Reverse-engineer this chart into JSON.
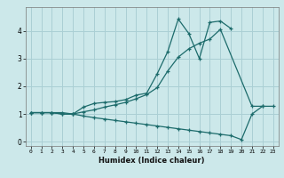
{
  "xlabel": "Humidex (Indice chaleur)",
  "bg_color": "#cce8ea",
  "grid_color": "#aacfd4",
  "line_color": "#1c6b6b",
  "xlim": [
    -0.5,
    23.5
  ],
  "ylim": [
    -0.15,
    4.85
  ],
  "xticks": [
    0,
    1,
    2,
    3,
    4,
    5,
    6,
    7,
    8,
    9,
    10,
    11,
    12,
    13,
    14,
    15,
    16,
    17,
    18,
    19,
    20,
    21,
    22,
    23
  ],
  "yticks": [
    0,
    1,
    2,
    3,
    4
  ],
  "line1_x": [
    0,
    1,
    2,
    3,
    4,
    5,
    6,
    7,
    8,
    9,
    10,
    11,
    12,
    13,
    14,
    15,
    16,
    17,
    18,
    19
  ],
  "line1_y": [
    1.05,
    1.05,
    1.05,
    1.05,
    1.0,
    1.25,
    1.38,
    1.42,
    1.45,
    1.52,
    1.68,
    1.75,
    2.45,
    3.25,
    4.42,
    3.9,
    3.0,
    4.3,
    4.35,
    4.08
  ],
  "line2_x": [
    0,
    1,
    2,
    3,
    4,
    5,
    6,
    7,
    8,
    9,
    10,
    11,
    12,
    13,
    14,
    15,
    16,
    17,
    18,
    21,
    22
  ],
  "line2_y": [
    1.05,
    1.05,
    1.05,
    1.0,
    1.0,
    1.08,
    1.15,
    1.25,
    1.33,
    1.42,
    1.55,
    1.7,
    1.95,
    2.55,
    3.05,
    3.35,
    3.55,
    3.7,
    4.05,
    1.28,
    1.28
  ],
  "line3_x": [
    0,
    1,
    2,
    3,
    4,
    5,
    6,
    7,
    8,
    9,
    10,
    11,
    12,
    13,
    14,
    15,
    16,
    17,
    18,
    19,
    20,
    21,
    22,
    23
  ],
  "line3_y": [
    1.05,
    1.05,
    1.05,
    1.0,
    1.0,
    0.93,
    0.87,
    0.82,
    0.77,
    0.72,
    0.67,
    0.62,
    0.57,
    0.52,
    0.47,
    0.42,
    0.37,
    0.32,
    0.27,
    0.22,
    0.08,
    1.0,
    1.28,
    1.28
  ]
}
